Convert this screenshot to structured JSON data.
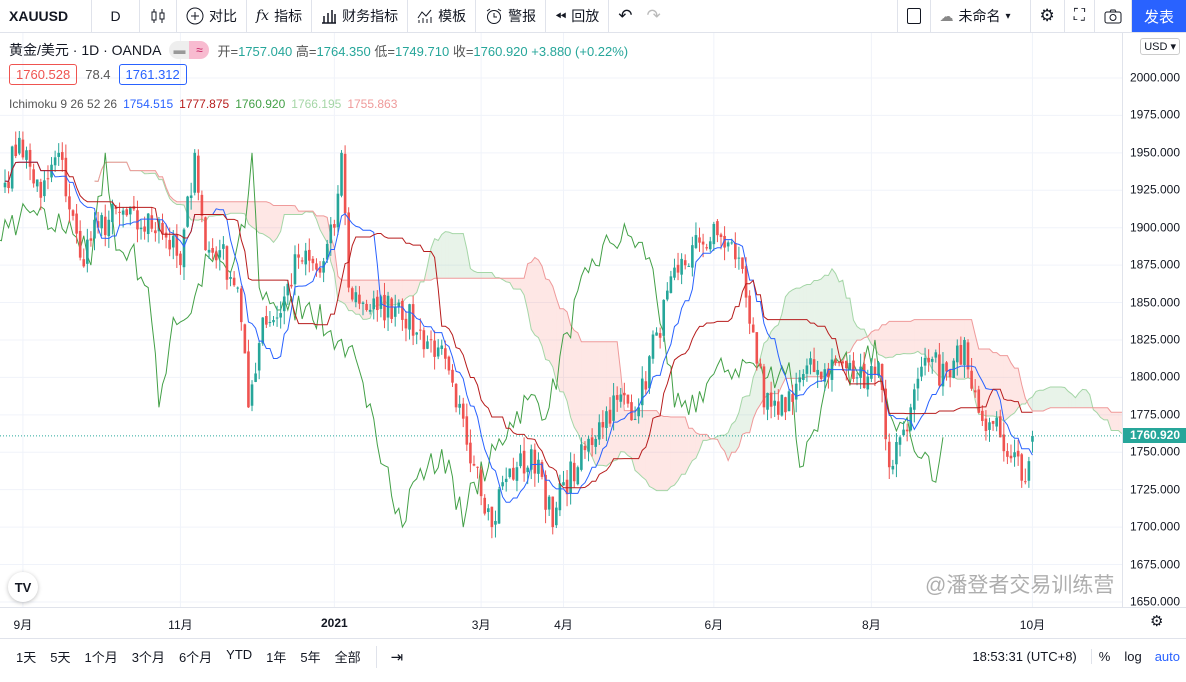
{
  "toolbar": {
    "symbol": "XAUUSD",
    "interval": "D",
    "compare": "对比",
    "indicators": "指标",
    "financials": "财务指标",
    "templates": "模板",
    "alerts": "警报",
    "replay": "回放",
    "layout_name": "未命名",
    "publish": "发表"
  },
  "legend": {
    "title": "黄金/美元 · 1D · OANDA",
    "open_label": "开=",
    "open": "1757.040",
    "high_label": "高=",
    "high": "1764.350",
    "low_label": "低=",
    "low": "1749.710",
    "close_label": "收=",
    "close": "1760.920",
    "change": "+3.880 (+0.22%)",
    "bid": "1760.528",
    "spread": "78.4",
    "ask": "1761.312"
  },
  "ichimoku": {
    "label": "Ichimoku 9 26 52 26",
    "conversion": "1754.515",
    "base": "1777.875",
    "lagging": "1760.920",
    "span_a": "1766.195",
    "span_b": "1755.863"
  },
  "price_axis": {
    "currency": "USD",
    "last_price": "1760.920"
  },
  "bottom": {
    "ranges": [
      "1天",
      "5天",
      "1个月",
      "3个月",
      "6个月",
      "YTD",
      "1年",
      "5年",
      "全部"
    ],
    "time": "18:53:31 (UTC+8)",
    "percent": "%",
    "log": "log",
    "auto": "auto"
  },
  "watermark": "@潘登者交易训练营",
  "colors": {
    "up": "#26a69a",
    "down": "#ef5350",
    "conversion": "#2962ff",
    "base": "#b71c1c",
    "lagging": "#43a047",
    "span_a": "#a5d6a7",
    "span_b": "#ef9a9a",
    "accent": "#2962ff"
  },
  "chart_data": {
    "type": "candlestick",
    "ylim": [
      1650,
      2000
    ],
    "y_ticks": [
      1650,
      1675,
      1700,
      1725,
      1750,
      1775,
      1800,
      1825,
      1850,
      1875,
      1900,
      1925,
      1950,
      1975,
      2000
    ],
    "x_ticks": [
      {
        "day": 5,
        "label": "9月"
      },
      {
        "day": 49,
        "label": "11月"
      },
      {
        "day": 92,
        "label": "2021"
      },
      {
        "day": 133,
        "label": "3月"
      },
      {
        "day": 156,
        "label": "4月"
      },
      {
        "day": 198,
        "label": "6月"
      },
      {
        "day": 242,
        "label": "8月"
      },
      {
        "day": 287,
        "label": "10月"
      }
    ],
    "close_anchors": [
      [
        0,
        1930
      ],
      [
        4,
        1960
      ],
      [
        10,
        1920
      ],
      [
        15,
        1950
      ],
      [
        21,
        1880
      ],
      [
        26,
        1900
      ],
      [
        32,
        1910
      ],
      [
        38,
        1900
      ],
      [
        43,
        1905
      ],
      [
        49,
        1875
      ],
      [
        53,
        1950
      ],
      [
        56,
        1885
      ],
      [
        60,
        1885
      ],
      [
        65,
        1860
      ],
      [
        68,
        1780
      ],
      [
        72,
        1840
      ],
      [
        76,
        1840
      ],
      [
        82,
        1880
      ],
      [
        88,
        1870
      ],
      [
        92,
        1900
      ],
      [
        94,
        1950
      ],
      [
        96,
        1860
      ],
      [
        100,
        1850
      ],
      [
        104,
        1845
      ],
      [
        110,
        1850
      ],
      [
        115,
        1830
      ],
      [
        121,
        1820
      ],
      [
        126,
        1780
      ],
      [
        132,
        1740
      ],
      [
        136,
        1700
      ],
      [
        139,
        1730
      ],
      [
        143,
        1740
      ],
      [
        149,
        1745
      ],
      [
        153,
        1700
      ],
      [
        156,
        1730
      ],
      [
        160,
        1740
      ],
      [
        166,
        1770
      ],
      [
        171,
        1785
      ],
      [
        177,
        1780
      ],
      [
        182,
        1830
      ],
      [
        188,
        1870
      ],
      [
        194,
        1890
      ],
      [
        199,
        1895
      ],
      [
        205,
        1880
      ],
      [
        209,
        1830
      ],
      [
        212,
        1780
      ],
      [
        216,
        1775
      ],
      [
        222,
        1800
      ],
      [
        227,
        1805
      ],
      [
        233,
        1810
      ],
      [
        238,
        1800
      ],
      [
        244,
        1810
      ],
      [
        247,
        1740
      ],
      [
        250,
        1760
      ],
      [
        253,
        1780
      ],
      [
        258,
        1810
      ],
      [
        264,
        1800
      ],
      [
        268,
        1825
      ],
      [
        271,
        1790
      ],
      [
        275,
        1770
      ],
      [
        278,
        1760
      ],
      [
        282,
        1750
      ],
      [
        285,
        1730
      ],
      [
        287,
        1760
      ]
    ]
  }
}
